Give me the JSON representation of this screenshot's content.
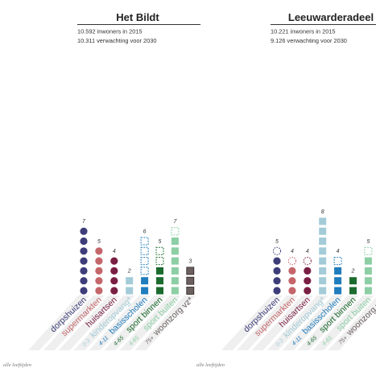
{
  "facilities": [
    {
      "id": "dorpshuizen",
      "label": "dorpshuizen",
      "age": "",
      "color": "#3d3d7a"
    },
    {
      "id": "supermarkten",
      "label": "supermarkten",
      "age": "",
      "color": "#c4666a"
    },
    {
      "id": "huisartsen",
      "label": "huisartsen",
      "age": "",
      "color": "#7a1f44"
    },
    {
      "id": "kinderopvang",
      "label": "kinderopvang*",
      "age": "0-3",
      "color": "#a3ccd8"
    },
    {
      "id": "basisscholen",
      "label": "basisscholen",
      "age": "4-11",
      "color": "#1f7cbd"
    },
    {
      "id": "sport_binnen",
      "label": "sport binnen",
      "age": "4-65",
      "color": "#1b6b2f"
    },
    {
      "id": "sport_buiten",
      "label": "sport buiten",
      "age": "4-65",
      "color": "#8ccfa4"
    },
    {
      "id": "woonzorg",
      "label": "woonzorg vz*",
      "age": "75+",
      "color": "#6b5f5f"
    }
  ],
  "footer_label": "alle leeftijden",
  "panels": [
    {
      "title": "Het Bildt",
      "line1": "10.592 inwoners in 2015",
      "line2": "10.311 verwachting voor 2030",
      "counts": [
        "7",
        "5",
        "4",
        "2",
        "6",
        "5",
        "7",
        "3"
      ]
    },
    {
      "title": "Leeuwarderadeel",
      "line1": "10.221 inwoners in 2015",
      "line2": "9.126 verwachting voor 2030",
      "counts": [
        "5",
        "4",
        "4",
        "8",
        "4",
        "2",
        "5",
        ""
      ]
    }
  ],
  "chart_data": [
    {
      "type": "bar",
      "title": "Het Bildt",
      "categories": [
        "dorpshuizen",
        "supermarkten",
        "huisartsen",
        "kinderopvang*",
        "basisscholen",
        "sport binnen",
        "sport buiten",
        "woonzorg vz*"
      ],
      "series": [
        {
          "values": [
            7,
            5,
            4,
            2,
            2,
            3,
            6,
            3
          ]
        },
        {
          "values": [
            0,
            0,
            0,
            0,
            4,
            2,
            1,
            0
          ]
        }
      ]
    },
    {
      "type": "bar",
      "title": "Leeuwarderadeel",
      "categories": [
        "dorpshuizen",
        "supermarkten",
        "huisartsen",
        "kinderopvang*",
        "basisscholen",
        "sport binnen",
        "sport buiten",
        "woonzorg vz*"
      ],
      "series": [
        {
          "values": [
            4,
            3,
            3,
            8,
            3,
            2,
            4,
            0
          ]
        },
        {
          "values": [
            1,
            1,
            1,
            0,
            1,
            0,
            1,
            0
          ]
        }
      ]
    }
  ]
}
